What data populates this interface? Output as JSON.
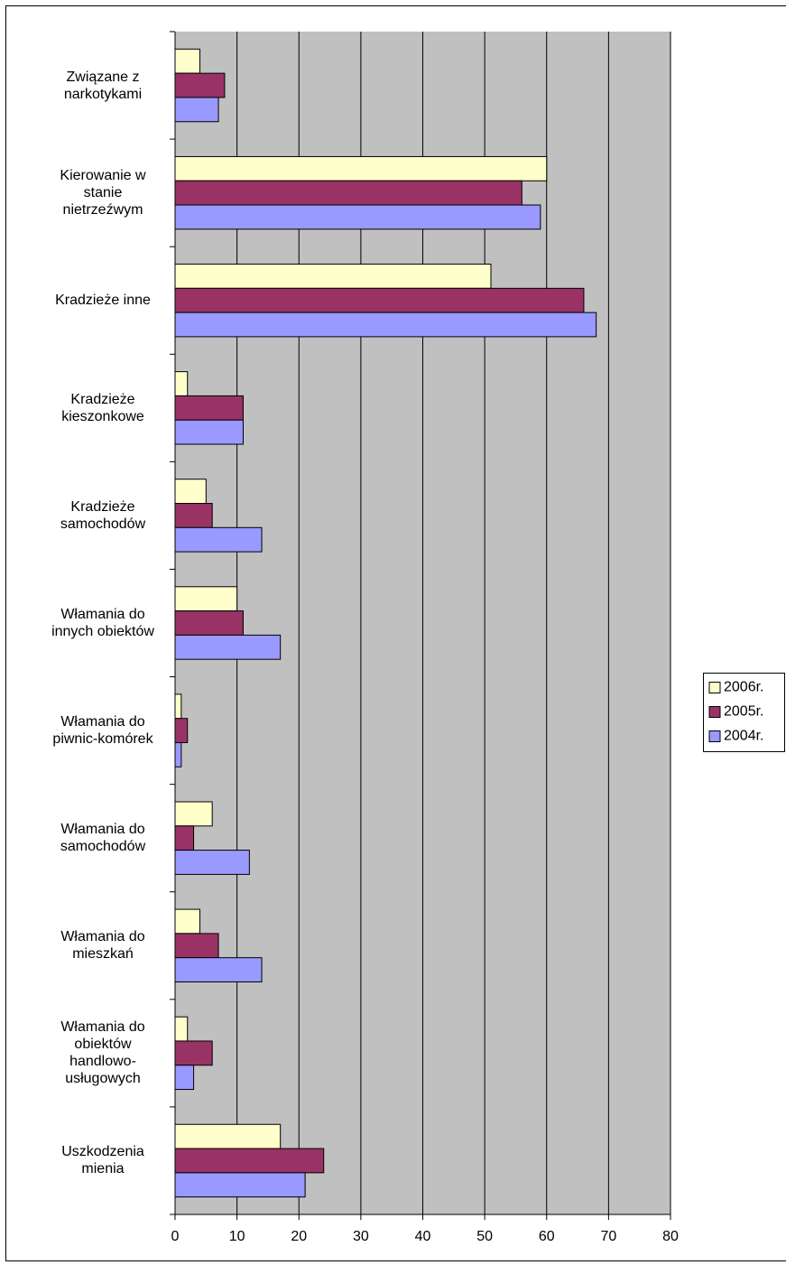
{
  "chart_data": {
    "type": "hbar",
    "categories": [
      "Związane z narkotykami",
      "Kierowanie w stanie nietrzeźwym",
      "Kradzieże inne",
      "Kradzieże kieszonkowe",
      "Kradzieże samochodów",
      "Włamania do innych obiektów",
      "Włamania do piwnic-komórek",
      "Włamania do samochodów",
      "Włamania do mieszkań",
      "Włamania do obiektów handlowo-usługowych",
      "Uszkodzenia mienia"
    ],
    "series": [
      {
        "name": "2006r.",
        "color": "#ffffcc",
        "values": [
          4,
          60,
          51,
          2,
          5,
          10,
          1,
          6,
          4,
          2,
          17
        ]
      },
      {
        "name": "2005r.",
        "color": "#993366",
        "values": [
          8,
          56,
          66,
          11,
          6,
          11,
          2,
          3,
          7,
          6,
          24
        ]
      },
      {
        "name": "2004r.",
        "color": "#9999ff",
        "values": [
          7,
          59,
          68,
          11,
          14,
          17,
          1,
          12,
          14,
          3,
          21
        ]
      }
    ],
    "xlim": [
      0,
      80
    ],
    "xticks": [
      0,
      10,
      20,
      30,
      40,
      50,
      60,
      70,
      80
    ],
    "grid": true,
    "legend": "right"
  }
}
